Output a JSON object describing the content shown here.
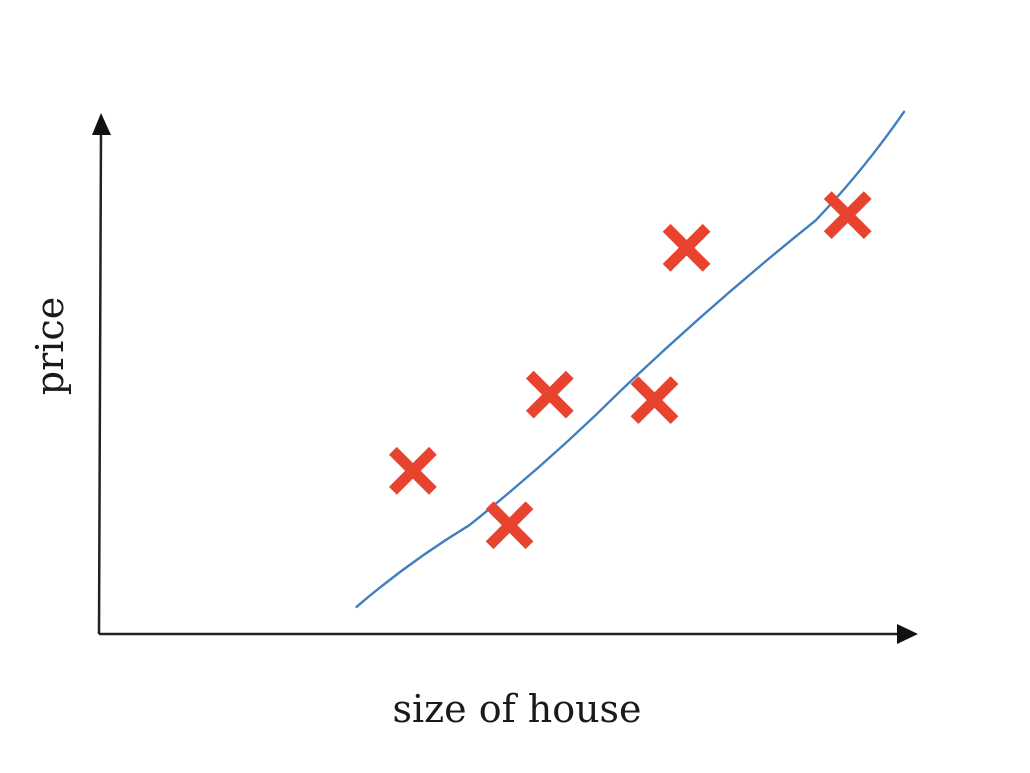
{
  "chart_data": {
    "type": "scatter",
    "title": "",
    "xlabel": "size of house",
    "ylabel": "price",
    "xlim": [
      0,
      10
    ],
    "ylim": [
      0,
      10
    ],
    "grid": false,
    "legend": "none",
    "series": [
      {
        "kind": "scatter",
        "marker": "x",
        "color": "#e8432f",
        "points": [
          {
            "x": 3.9,
            "y": 3.0
          },
          {
            "x": 5.1,
            "y": 2.0
          },
          {
            "x": 5.6,
            "y": 4.4
          },
          {
            "x": 6.9,
            "y": 4.3
          },
          {
            "x": 7.3,
            "y": 7.1
          },
          {
            "x": 9.3,
            "y": 7.7
          }
        ]
      },
      {
        "kind": "line",
        "color": "#3f7fc0",
        "points": [
          {
            "x": 3.2,
            "y": 0.5
          },
          {
            "x": 4.6,
            "y": 2.0
          },
          {
            "x": 6.5,
            "y": 4.5
          },
          {
            "x": 8.9,
            "y": 7.6
          },
          {
            "x": 10.0,
            "y": 9.6
          }
        ]
      }
    ]
  }
}
